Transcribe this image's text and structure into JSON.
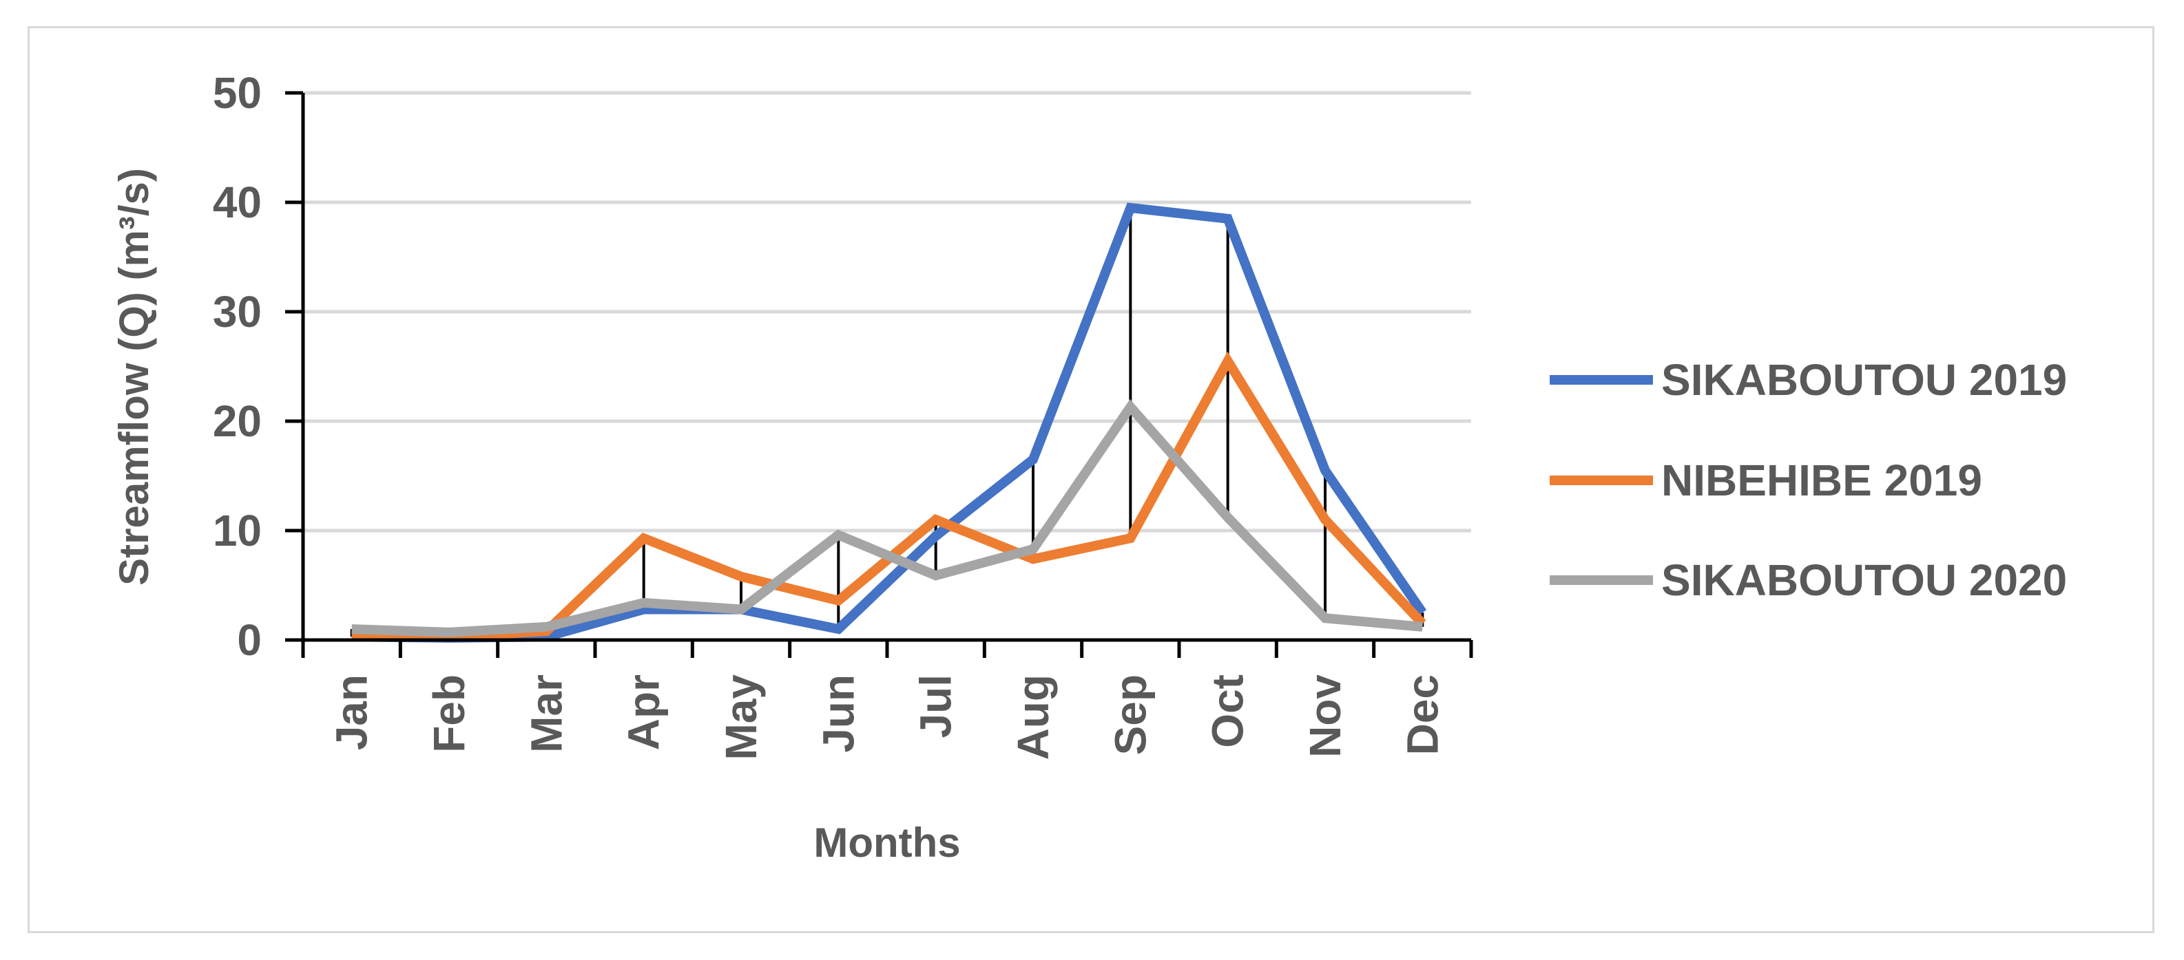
{
  "chart_data": {
    "type": "line",
    "title": "",
    "xlabel": "Months",
    "ylabel": "Streamflow (Q) (m³/s)",
    "ylim": [
      0,
      50
    ],
    "yticks": [
      0,
      10,
      20,
      30,
      40,
      50
    ],
    "grid": true,
    "legend_position": "right",
    "categories": [
      "Jan",
      "Feb",
      "Mar",
      "Apr",
      "May",
      "Jun",
      "Jul",
      "Aug",
      "Sep",
      "Oct",
      "Nov",
      "Dec"
    ],
    "series": [
      {
        "name": "SIKABOUTOU 2019",
        "color": "#4472c4",
        "values": [
          0.3,
          0.2,
          0.3,
          2.8,
          2.8,
          1.0,
          9.5,
          16.5,
          39.5,
          38.5,
          15.5,
          2.5
        ]
      },
      {
        "name": "NIBEHIBE 2019",
        "color": "#ed7d31",
        "values": [
          0.4,
          0.3,
          0.8,
          9.3,
          5.8,
          3.6,
          11.0,
          7.4,
          9.3,
          25.5,
          11.0,
          1.5
        ]
      },
      {
        "name": "SIKABOUTOU 2020",
        "color": "#a5a5a5",
        "values": [
          1.0,
          0.7,
          1.2,
          3.4,
          2.8,
          9.6,
          5.9,
          8.3,
          21.3,
          11.2,
          2.0,
          1.2
        ]
      }
    ],
    "high_low_lines": true
  }
}
